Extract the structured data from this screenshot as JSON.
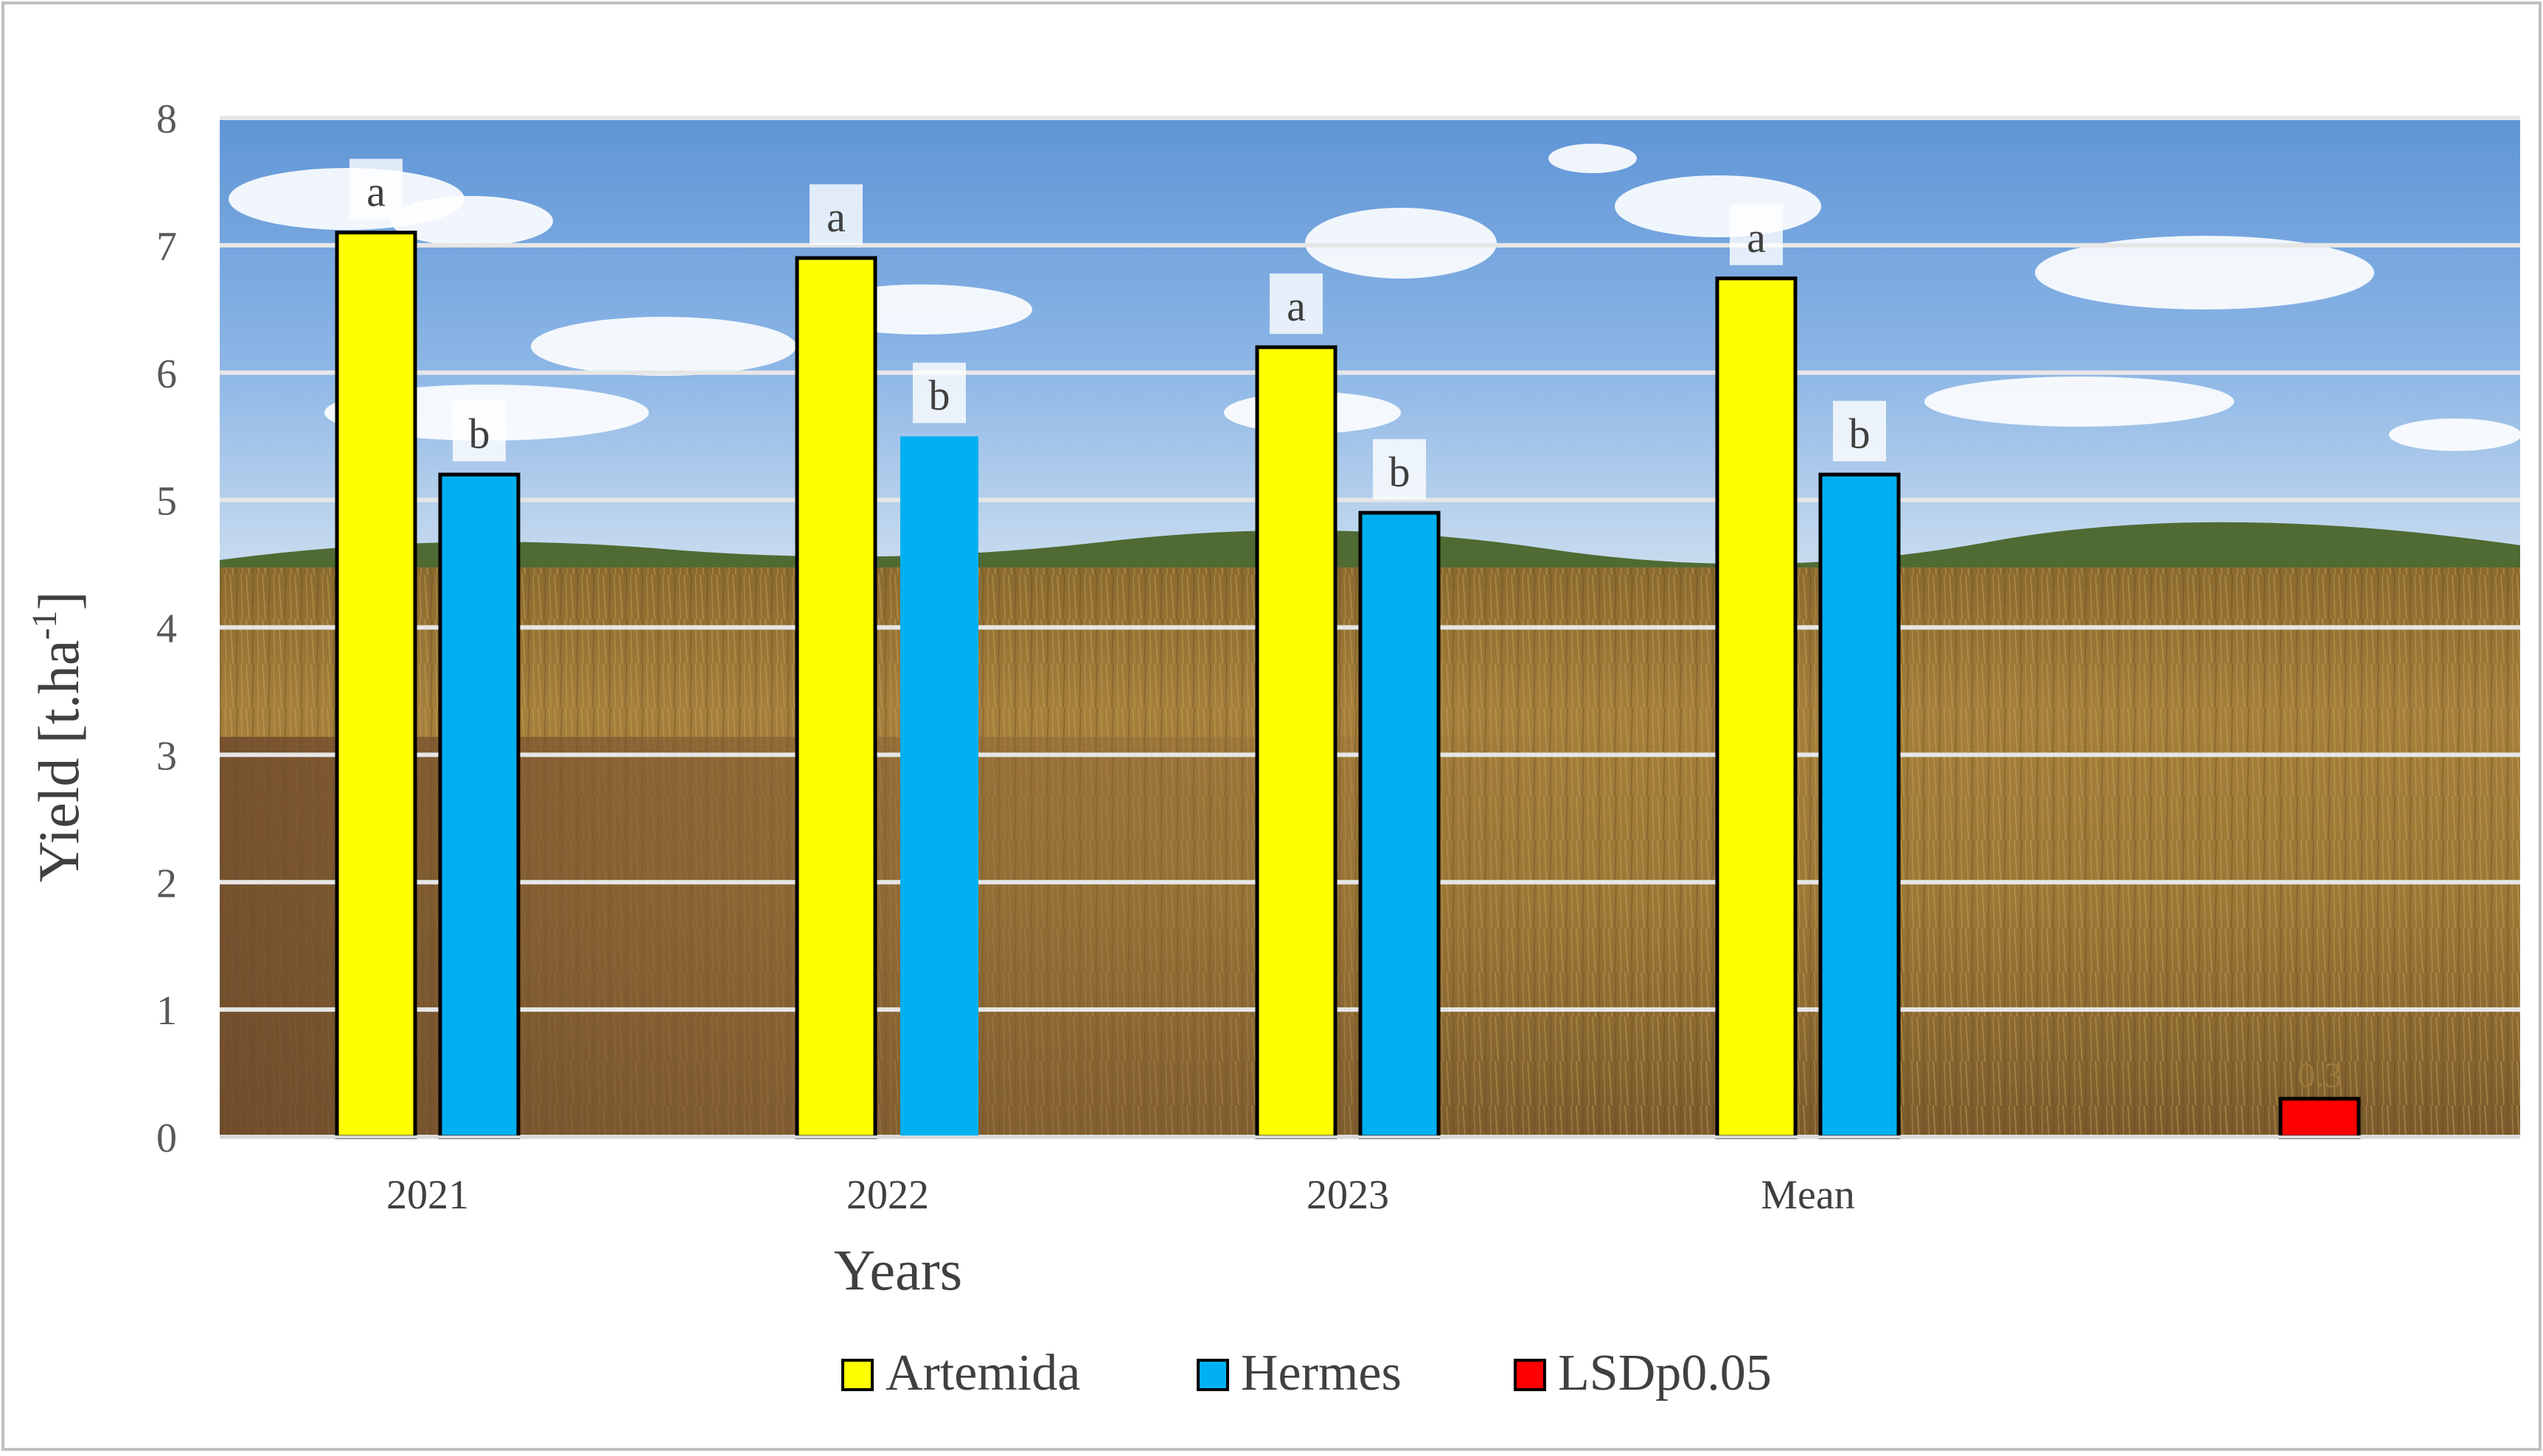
{
  "chart_data": {
    "type": "bar",
    "categories": [
      "2021",
      "2022",
      "2023",
      "Mean",
      ""
    ],
    "series": [
      {
        "name": "Artemida",
        "color": "#ffff00",
        "values": [
          7.1,
          6.9,
          6.2,
          6.74,
          null
        ],
        "labels": [
          "a",
          "a",
          "a",
          "a",
          ""
        ]
      },
      {
        "name": "Hermes",
        "color": "#00b0f0",
        "values": [
          5.2,
          5.5,
          4.9,
          5.2,
          null
        ],
        "labels": [
          "b",
          "b",
          "b",
          "b",
          ""
        ]
      },
      {
        "name": "LSDp0.05",
        "color": "#ff0000",
        "values": [
          null,
          null,
          null,
          null,
          0.3
        ],
        "labels": [
          "",
          "",
          "",
          "",
          "0.3"
        ]
      }
    ],
    "xlabel": "Years",
    "ylabel": "Yield [t.ha",
    "ylabel_sup": "-1",
    "ylabel_end": "]",
    "ylim": [
      0,
      8
    ],
    "yticks": [
      "0",
      "1",
      "2",
      "3",
      "4",
      "5",
      "6",
      "7",
      "8"
    ],
    "grid": true,
    "legend_position": "bottom"
  }
}
